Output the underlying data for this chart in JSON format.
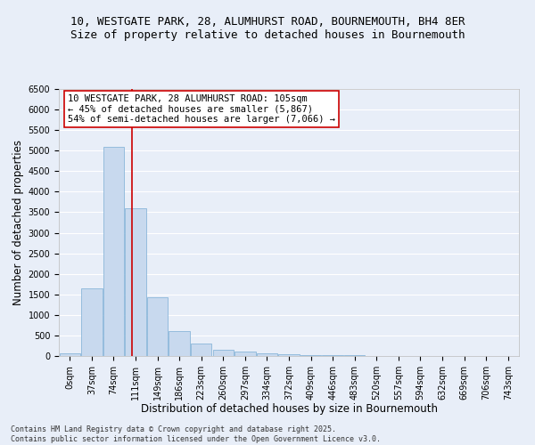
{
  "title_line1": "10, WESTGATE PARK, 28, ALUMHURST ROAD, BOURNEMOUTH, BH4 8ER",
  "title_line2": "Size of property relative to detached houses in Bournemouth",
  "xlabel": "Distribution of detached houses by size in Bournemouth",
  "ylabel": "Number of detached properties",
  "bar_color": "#c8d9ee",
  "bar_edge_color": "#7aadd4",
  "background_color": "#e8eef8",
  "fig_background_color": "#e8eef8",
  "grid_color": "#ffffff",
  "categories": [
    "0sqm",
    "37sqm",
    "74sqm",
    "111sqm",
    "149sqm",
    "186sqm",
    "223sqm",
    "260sqm",
    "297sqm",
    "334sqm",
    "372sqm",
    "409sqm",
    "446sqm",
    "483sqm",
    "520sqm",
    "557sqm",
    "594sqm",
    "632sqm",
    "669sqm",
    "706sqm",
    "743sqm"
  ],
  "values": [
    55,
    1650,
    5100,
    3600,
    1420,
    610,
    305,
    155,
    105,
    75,
    42,
    28,
    18,
    12,
    6,
    4,
    2,
    1,
    1,
    1,
    1
  ],
  "vline_color": "#cc0000",
  "annotation_text": "10 WESTGATE PARK, 28 ALUMHURST ROAD: 105sqm\n← 45% of detached houses are smaller (5,867)\n54% of semi-detached houses are larger (7,066) →",
  "annotation_box_color": "#ffffff",
  "annotation_border_color": "#cc0000",
  "ylim": [
    0,
    6500
  ],
  "yticks": [
    0,
    500,
    1000,
    1500,
    2000,
    2500,
    3000,
    3500,
    4000,
    4500,
    5000,
    5500,
    6000,
    6500
  ],
  "footer_text": "Contains HM Land Registry data © Crown copyright and database right 2025.\nContains public sector information licensed under the Open Government Licence v3.0.",
  "title_fontsize": 9,
  "subtitle_fontsize": 9,
  "axis_label_fontsize": 8.5,
  "tick_fontsize": 7,
  "annotation_fontsize": 7.5,
  "footer_fontsize": 6,
  "vline_x": 2.84
}
